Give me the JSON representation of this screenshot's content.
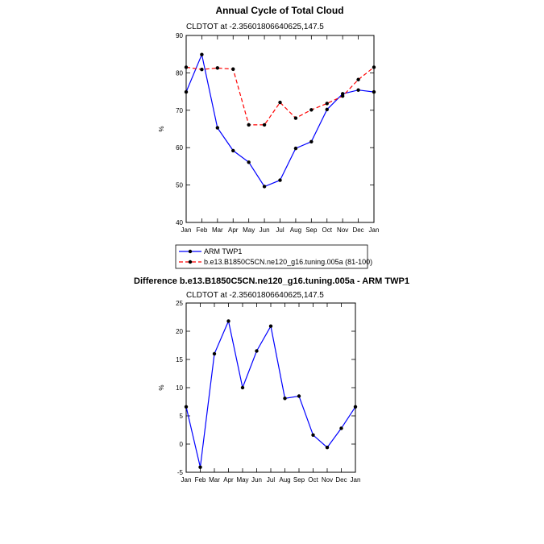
{
  "chart_data": [
    {
      "type": "line",
      "title": "Annual Cycle of Total Cloud",
      "subtitle": "CLDTOT at -2.35601806640625,147.5",
      "xlabel": "",
      "ylabel": "%",
      "categories": [
        "Jan",
        "Feb",
        "Mar",
        "Apr",
        "May",
        "Jun",
        "Jul",
        "Aug",
        "Sep",
        "Oct",
        "Nov",
        "Dec",
        "Jan"
      ],
      "ylim": [
        40,
        90
      ],
      "yticks": [
        40,
        50,
        60,
        70,
        80,
        90
      ],
      "series": [
        {
          "name": "ARM TWP1",
          "color": "#0000ff",
          "style": "solid",
          "values": [
            74.9,
            84.9,
            65.3,
            59.2,
            56.1,
            49.6,
            51.3,
            59.8,
            61.6,
            70.2,
            74.4,
            75.4,
            74.9
          ]
        },
        {
          "name": "b.e13.B1850C5CN.ne120_g16.tuning.005a (81-100)",
          "color": "#ff0000",
          "style": "dashed",
          "values": [
            81.5,
            80.9,
            81.3,
            81.0,
            66.1,
            66.1,
            72.1,
            67.9,
            70.1,
            71.8,
            73.8,
            78.2,
            81.5
          ]
        }
      ],
      "legend": "below"
    },
    {
      "type": "line",
      "title": "Difference b.e13.B1850C5CN.ne120_g16.tuning.005a - ARM TWP1",
      "subtitle": "CLDTOT at -2.35601806640625,147.5",
      "xlabel": "",
      "ylabel": "%",
      "categories": [
        "Jan",
        "Feb",
        "Mar",
        "Apr",
        "May",
        "Jun",
        "Jul",
        "Aug",
        "Sep",
        "Oct",
        "Nov",
        "Dec",
        "Jan"
      ],
      "ylim": [
        -5,
        25
      ],
      "yticks": [
        -5,
        0,
        5,
        10,
        15,
        20,
        25
      ],
      "series": [
        {
          "name": "Difference",
          "color": "#0000ff",
          "style": "solid",
          "values": [
            6.6,
            -4.1,
            16.0,
            21.8,
            10.0,
            16.5,
            20.9,
            8.1,
            8.5,
            1.6,
            -0.6,
            2.8,
            6.6
          ]
        }
      ]
    }
  ]
}
